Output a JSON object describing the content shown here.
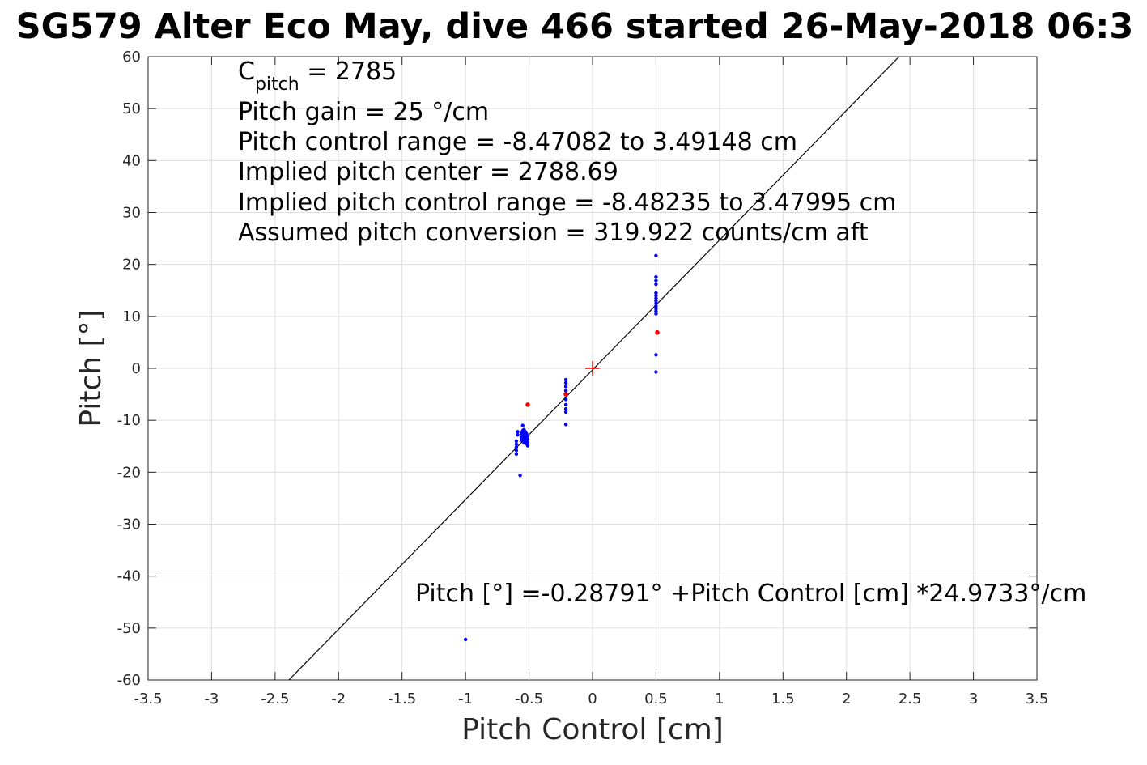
{
  "chart_data": {
    "type": "scatter",
    "title": "SG579 Alter Eco May, dive 466 started 26-May-2018 06:3",
    "xlabel": "Pitch Control [cm]",
    "ylabel": "Pitch [°]",
    "xlim": [
      -3.5,
      3.5
    ],
    "ylim": [
      -60,
      60
    ],
    "xticks": [
      "-3.5",
      "-3",
      "-2.5",
      "-2",
      "-1.5",
      "-1",
      "-0.5",
      "0",
      "0.5",
      "1",
      "1.5",
      "2",
      "2.5",
      "3",
      "3.5"
    ],
    "yticks": [
      "60",
      "50",
      "40",
      "30",
      "20",
      "10",
      "0",
      "-10",
      "-20",
      "-30",
      "-40",
      "-50",
      "-60"
    ],
    "grid": true,
    "annotations": {
      "c_pitch_symbol": "C",
      "c_pitch_subscript": "pitch",
      "c_pitch_value": " = 2785",
      "lines": [
        "Pitch gain = 25 °/cm",
        "Pitch control range = -8.47082 to 3.49148 cm",
        "Implied pitch center = 2788.69",
        "Implied pitch control range = -8.48235 to 3.47995 cm",
        "Assumed pitch conversion = 319.922 counts/cm aft"
      ],
      "fit_equation": "Pitch [°] =-0.28791° +Pitch Control [cm] *24.9733°/cm"
    },
    "fit_line": {
      "intercept": -0.28791,
      "slope": 24.9733,
      "color": "#000000"
    },
    "center_marker": {
      "x": 0,
      "y": 0,
      "color": "#ff0000"
    },
    "series": [
      {
        "color": "#0000ff",
        "points": [
          [
            -0.59,
            -12.2
          ],
          [
            -0.59,
            -12.8
          ],
          [
            -0.6,
            -14.0
          ],
          [
            -0.6,
            -14.6
          ],
          [
            -0.6,
            -15.2
          ],
          [
            -0.6,
            -15.8
          ],
          [
            -0.6,
            -16.5
          ],
          [
            -0.57,
            -20.6
          ],
          [
            -0.56,
            -12.5
          ],
          [
            -0.56,
            -13.2
          ],
          [
            -0.56,
            -13.8
          ],
          [
            -0.55,
            -11.0
          ],
          [
            -0.55,
            -12.0
          ],
          [
            -0.55,
            -12.8
          ],
          [
            -0.55,
            -13.5
          ],
          [
            -0.54,
            -11.8
          ],
          [
            -0.54,
            -12.4
          ],
          [
            -0.54,
            -13.0
          ],
          [
            -0.54,
            -13.7
          ],
          [
            -0.54,
            -14.3
          ],
          [
            -0.53,
            -12.2
          ],
          [
            -0.53,
            -12.8
          ],
          [
            -0.53,
            -13.4
          ],
          [
            -0.53,
            -14.0
          ],
          [
            -0.52,
            -12.6
          ],
          [
            -0.52,
            -13.2
          ],
          [
            -0.52,
            -13.9
          ],
          [
            -0.52,
            -14.5
          ],
          [
            -0.51,
            -13.0
          ],
          [
            -0.51,
            -13.6
          ],
          [
            -0.51,
            -14.3
          ],
          [
            -0.51,
            -14.9
          ],
          [
            -0.21,
            -2.2
          ],
          [
            -0.21,
            -2.8
          ],
          [
            -0.21,
            -3.5
          ],
          [
            -0.21,
            -4.3
          ],
          [
            -0.21,
            -5.0
          ],
          [
            -0.21,
            -6.0
          ],
          [
            -0.21,
            -7.0
          ],
          [
            -0.21,
            -7.8
          ],
          [
            -0.21,
            -8.4
          ],
          [
            -0.21,
            -10.8
          ],
          [
            0.5,
            21.7
          ],
          [
            0.5,
            17.6
          ],
          [
            0.5,
            16.9
          ],
          [
            0.5,
            16.2
          ],
          [
            0.5,
            14.5
          ],
          [
            0.5,
            14.0
          ],
          [
            0.5,
            13.5
          ],
          [
            0.5,
            13.0
          ],
          [
            0.5,
            12.5
          ],
          [
            0.5,
            12.0
          ],
          [
            0.5,
            11.5
          ],
          [
            0.5,
            11.0
          ],
          [
            0.5,
            10.5
          ],
          [
            0.5,
            2.6
          ],
          [
            0.5,
            -0.7
          ],
          [
            -1.0,
            -52.2
          ]
        ]
      },
      {
        "color": "#ff0000",
        "points": [
          [
            -0.51,
            -7.0
          ],
          [
            0.51,
            6.9
          ],
          [
            -0.21,
            -5.0
          ]
        ]
      }
    ]
  }
}
